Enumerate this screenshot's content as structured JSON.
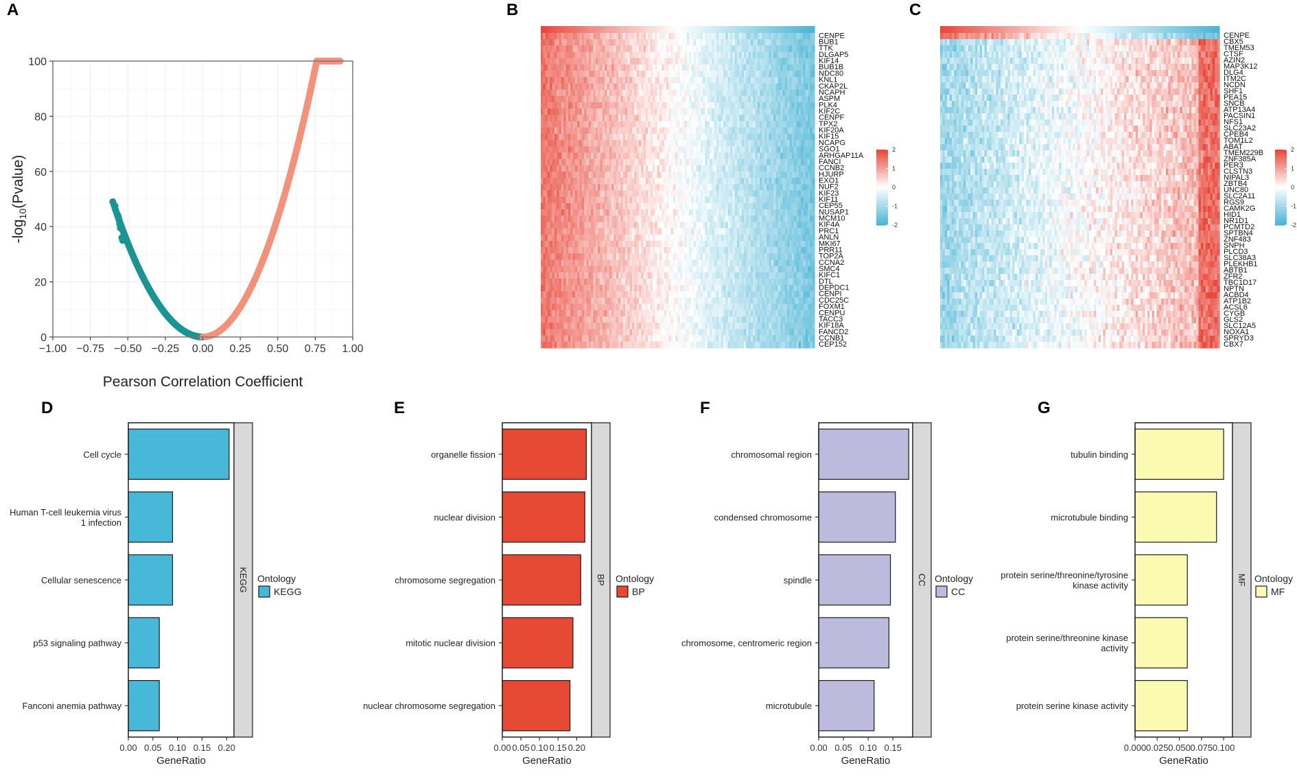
{
  "panels": {
    "A": "A",
    "B": "B",
    "C": "C",
    "D": "D",
    "E": "E",
    "F": "F",
    "G": "G"
  },
  "colors": {
    "negative": "#1a9494",
    "positive": "#f2927a",
    "heat_high": "#e8483b",
    "heat_mid": "#ffffff",
    "heat_low": "#4cb5d6",
    "kegg": "#48b8d8",
    "bp": "#e64a35",
    "cc": "#bdbbdd",
    "mf": "#fafab0",
    "facet_strip": "#d9d9d9"
  },
  "chart_data": [
    {
      "type": "scatter",
      "panel": "A",
      "title": "",
      "xlabel": "Pearson Correlation Coefficient",
      "ylabel_main": "-log",
      "ylabel_sub": "10",
      "ylabel_tail": "(Pvalue)",
      "xlim": [
        -1.0,
        1.0
      ],
      "ylim": [
        0,
        100
      ],
      "xticks": [
        -1.0,
        -0.75,
        -0.5,
        -0.25,
        0.0,
        0.25,
        0.5,
        0.75,
        1.0
      ],
      "xtick_labels": [
        "−1.00",
        "−0.75",
        "−0.50",
        "−0.25",
        "0.00",
        "0.25",
        "0.50",
        "0.75",
        "1.00"
      ],
      "yticks": [
        0,
        20,
        40,
        60,
        80,
        100
      ],
      "ytick_labels": [
        "0",
        "20",
        "40",
        "60",
        "80",
        "100"
      ],
      "negative_curve": {
        "x_min": -0.6,
        "x_max": 0.0,
        "y_at_min": 49
      },
      "positive_curve": {
        "x_min": 0.0,
        "x_max": 0.76,
        "y_at_max": 100,
        "cap_x_max": 0.92,
        "cap_y": 100
      },
      "grid": true
    },
    {
      "type": "heatmap",
      "panel": "B",
      "pattern": "positive",
      "colorbar_ticks": [
        2,
        1,
        0,
        -1,
        -2
      ],
      "colorbar_labels": [
        "2",
        "1",
        "0",
        "-1",
        "-2"
      ],
      "genes": [
        "CENPE",
        "BUB1",
        "TTK",
        "DLGAP5",
        "KIF14",
        "BUB1B",
        "NDC80",
        "KNL1",
        "CKAP2L",
        "NCAPH",
        "ASPM",
        "PLK4",
        "KIF2C",
        "CENPF",
        "TPX2",
        "KIF20A",
        "KIF15",
        "NCAPG",
        "SGO1",
        "ARHGAP11A",
        "FANCI",
        "CCNB2",
        "HJURP",
        "EXO1",
        "NUF2",
        "KIF23",
        "KIF11",
        "CEP55",
        "NUSAP1",
        "MCM10",
        "KIF4A",
        "PRC1",
        "ANLN",
        "MKI67",
        "PRR11",
        "TOP2A",
        "CCNA2",
        "SMC4",
        "KIFC1",
        "DTL",
        "DEPDC1",
        "CENPI",
        "CDC25C",
        "FOXM1",
        "CENPU",
        "TACC3",
        "KIF18A",
        "FANCD2",
        "CCNB1",
        "CEP152"
      ]
    },
    {
      "type": "heatmap",
      "panel": "C",
      "pattern": "negative",
      "colorbar_ticks": [
        2,
        1,
        0,
        -1,
        -2
      ],
      "colorbar_labels": [
        "2",
        "1",
        "0",
        "-1",
        "-2"
      ],
      "genes": [
        "CENPE",
        "CBX5",
        "TMEM53",
        "CTSF",
        "AZIN2",
        "MAP3K12",
        "DLG4",
        "ITM2C",
        "NCDN",
        "SHF1",
        "PEA15",
        "SNCB",
        "ATP13A4",
        "PACSIN1",
        "NFS1",
        "SLC23A2",
        "CPEB4",
        "TOM1L2",
        "ABAT",
        "TMEM229B",
        "ZNF385A",
        "PER3",
        "CLSTN3",
        "NIPAL3",
        "ZBTB4",
        "UNC80",
        "SLC2A11",
        "RGS9",
        "CAMK2G",
        "HID1",
        "NR1D1",
        "PCMTD2",
        "SPTBN4",
        "ZNF483",
        "SNPH",
        "PLCD3",
        "SLC38A3",
        "PLEKHB1",
        "ABTB1",
        "ZFR2",
        "TBC1D17",
        "NPTN",
        "ACBD4",
        "ATP1B2",
        "ACSL6",
        "CYGB",
        "GLS2",
        "SLC12A5",
        "NOXA1",
        "SPRYD3",
        "CBX7"
      ]
    },
    {
      "type": "bar",
      "panel": "D",
      "orientation": "horizontal",
      "categories": [
        "Cell cycle",
        "Human T-cell leukemia virus 1 infection",
        "Cellular senescence",
        "p53 signaling pathway",
        "Fanconi anemia pathway"
      ],
      "category_lines": [
        [
          "Cell cycle"
        ],
        [
          "Human T-cell leukemia virus",
          "1 infection"
        ],
        [
          "Cellular senescence"
        ],
        [
          "p53 signaling pathway"
        ],
        [
          "Fanconi anemia pathway"
        ]
      ],
      "values": [
        0.205,
        0.09,
        0.09,
        0.063,
        0.063
      ],
      "xlim": [
        0,
        0.215
      ],
      "xticks": [
        0,
        0.05,
        0.1,
        0.15,
        0.2
      ],
      "xtick_labels": [
        "0.00",
        "0.05",
        "0.10",
        "0.15",
        "0.20"
      ],
      "xlabel": "GeneRatio",
      "facet": "KEGG",
      "legend_title": "Ontology",
      "legend_label": "KEGG"
    },
    {
      "type": "bar",
      "panel": "E",
      "orientation": "horizontal",
      "categories": [
        "organelle fission",
        "nuclear division",
        "chromosome segregation",
        "mitotic nuclear division",
        "nuclear chromosome segregation"
      ],
      "category_lines": [
        [
          "organelle fission"
        ],
        [
          "nuclear division"
        ],
        [
          "chromosome segregation"
        ],
        [
          "mitotic nuclear division"
        ],
        [
          "nuclear chromosome segregation"
        ]
      ],
      "values": [
        0.226,
        0.222,
        0.211,
        0.19,
        0.182
      ],
      "xlim": [
        0,
        0.24
      ],
      "xticks": [
        0,
        0.05,
        0.1,
        0.15,
        0.2
      ],
      "xtick_labels": [
        "0.00",
        "0.05",
        "0.10",
        "0.15",
        "0.20"
      ],
      "xlabel": "GeneRatio",
      "facet": "BP",
      "legend_title": "Ontology",
      "legend_label": "BP"
    },
    {
      "type": "bar",
      "panel": "F",
      "orientation": "horizontal",
      "categories": [
        "chromosomal region",
        "condensed chromosome",
        "spindle",
        "chromosome, centromeric region",
        "microtubule"
      ],
      "category_lines": [
        [
          "chromosomal region"
        ],
        [
          "condensed chromosome"
        ],
        [
          "spindle"
        ],
        [
          "chromosome, centromeric region"
        ],
        [
          "microtubule"
        ]
      ],
      "values": [
        0.182,
        0.155,
        0.145,
        0.142,
        0.112
      ],
      "xlim": [
        0,
        0.19
      ],
      "xticks": [
        0,
        0.05,
        0.1,
        0.15
      ],
      "xtick_labels": [
        "0.00",
        "0.05",
        "0.10",
        "0.15"
      ],
      "xlabel": "GeneRatio",
      "facet": "CC",
      "legend_title": "Ontology",
      "legend_label": "CC"
    },
    {
      "type": "bar",
      "panel": "G",
      "orientation": "horizontal",
      "categories": [
        "tubulin binding",
        "microtubule binding",
        "protein serine/threonine/tyrosine kinase activity",
        "protein serine/threonine kinase activity",
        "protein serine kinase activity"
      ],
      "category_lines": [
        [
          "tubulin binding"
        ],
        [
          "microtubule binding"
        ],
        [
          "protein serine/threonine/tyrosine",
          "kinase activity"
        ],
        [
          "protein serine/threonine kinase",
          "activity"
        ],
        [
          "protein serine kinase activity"
        ]
      ],
      "values": [
        0.1,
        0.092,
        0.059,
        0.059,
        0.059
      ],
      "xlim": [
        0,
        0.11
      ],
      "xticks": [
        0,
        0.025,
        0.05,
        0.075,
        0.1
      ],
      "xtick_labels": [
        "0.000",
        "0.025",
        "0.050",
        "0.075",
        "0.100"
      ],
      "xlabel": "GeneRatio",
      "facet": "MF",
      "legend_title": "Ontology",
      "legend_label": "MF"
    }
  ]
}
